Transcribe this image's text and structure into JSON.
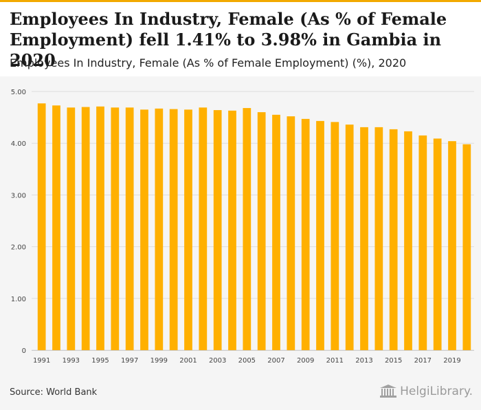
{
  "header": {
    "title": "Employees In Industry, Female (As % of Female Employment) fell 1.41% to 3.98% in Gambia in 2020",
    "subtitle": "Employees In Industry, Female (As % of Female Employment) (%), 2020"
  },
  "footer": {
    "source": "Source: World Bank",
    "logo_text": "HelgiLibrary."
  },
  "colors": {
    "bar": "#ffb000",
    "accent": "#f2a900",
    "grid": "#dddddd"
  },
  "chart_data": {
    "type": "bar",
    "title": "Employees In Industry, Female (As % of Female Employment) (%)",
    "xlabel": "",
    "ylabel": "",
    "ylim": [
      0,
      5
    ],
    "yticks": [
      "5.00",
      "4.00",
      "3.00",
      "2.00",
      "1.00",
      "0"
    ],
    "ytick_values": [
      5,
      4,
      3,
      2,
      1,
      0
    ],
    "categories": [
      "1991",
      "1992",
      "1993",
      "1994",
      "1995",
      "1996",
      "1997",
      "1998",
      "1999",
      "2000",
      "2001",
      "2002",
      "2003",
      "2004",
      "2005",
      "2006",
      "2007",
      "2008",
      "2009",
      "2010",
      "2011",
      "2012",
      "2013",
      "2014",
      "2015",
      "2016",
      "2017",
      "2018",
      "2019",
      "2020"
    ],
    "xtick_labels": [
      "1991",
      "1993",
      "1995",
      "1997",
      "1999",
      "2001",
      "2003",
      "2005",
      "2007",
      "2009",
      "2011",
      "2013",
      "2015",
      "2017",
      "2019"
    ],
    "values": [
      4.77,
      4.73,
      4.69,
      4.7,
      4.71,
      4.69,
      4.69,
      4.65,
      4.67,
      4.66,
      4.65,
      4.69,
      4.64,
      4.63,
      4.68,
      4.6,
      4.55,
      4.52,
      4.47,
      4.43,
      4.41,
      4.36,
      4.31,
      4.31,
      4.27,
      4.23,
      4.15,
      4.09,
      4.04,
      3.98
    ]
  }
}
